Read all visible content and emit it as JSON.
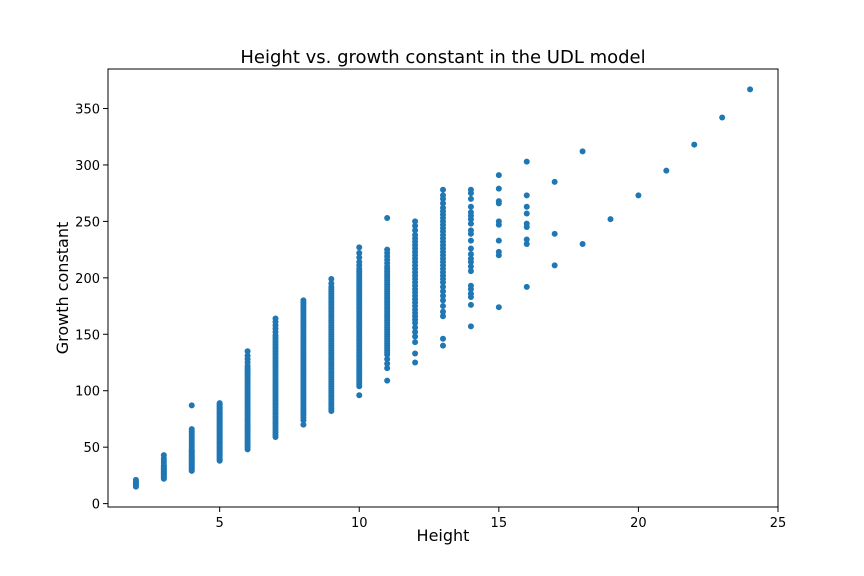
{
  "chart_data": {
    "type": "scatter",
    "title": "Height vs. growth constant in the UDL model",
    "xlabel": "Height",
    "ylabel": "Growth constant",
    "xlim": [
      1,
      25
    ],
    "ylim": [
      -3,
      385
    ],
    "xticks": [
      5,
      10,
      15,
      20,
      25
    ],
    "yticks": [
      0,
      50,
      100,
      150,
      200,
      250,
      300,
      350
    ],
    "grid": false,
    "point_color": "#1f77b4",
    "points_by_height": [
      {
        "x": 2,
        "y": [
          15,
          16,
          17,
          18,
          19,
          20,
          21
        ]
      },
      {
        "x": 3,
        "y": [
          22,
          23,
          24,
          25,
          26,
          27,
          28,
          29,
          30,
          31,
          32,
          33,
          34,
          36,
          38,
          40,
          43
        ]
      },
      {
        "x": 4,
        "y": [
          29,
          30,
          31,
          32,
          33,
          34,
          35,
          36,
          37,
          38,
          39,
          40,
          41,
          42,
          43,
          44,
          45,
          46,
          47,
          48,
          50,
          52,
          54,
          56,
          58,
          60,
          62,
          64,
          66,
          87
        ]
      },
      {
        "x": 5,
        "y": [
          38,
          39,
          40,
          41,
          42,
          43,
          44,
          45,
          46,
          47,
          48,
          49,
          50,
          51,
          52,
          53,
          54,
          55,
          56,
          57,
          58,
          59,
          60,
          61,
          62,
          63,
          64,
          65,
          66,
          67,
          68,
          69,
          70,
          71,
          72,
          73,
          74,
          75,
          76,
          77,
          78,
          79,
          80,
          81,
          82,
          83,
          84,
          85,
          86,
          87,
          88,
          89
        ]
      },
      {
        "x": 6,
        "y": [
          48,
          50,
          52,
          54,
          56,
          58,
          60,
          62,
          64,
          66,
          68,
          70,
          72,
          74,
          76,
          78,
          80,
          82,
          84,
          86,
          88,
          90,
          92,
          94,
          96,
          98,
          100,
          102,
          104,
          106,
          108,
          110,
          112,
          114,
          116,
          118,
          120,
          122,
          125,
          128,
          131,
          135
        ]
      },
      {
        "x": 7,
        "y": [
          59,
          61,
          63,
          65,
          67,
          69,
          71,
          73,
          75,
          77,
          79,
          81,
          83,
          85,
          87,
          89,
          91,
          93,
          95,
          97,
          99,
          101,
          103,
          105,
          107,
          109,
          111,
          113,
          115,
          117,
          119,
          121,
          123,
          125,
          127,
          129,
          131,
          133,
          135,
          137,
          139,
          141,
          143,
          145,
          147,
          149,
          152,
          155,
          158,
          161,
          164
        ]
      },
      {
        "x": 8,
        "y": [
          70,
          74,
          76,
          78,
          80,
          82,
          84,
          86,
          88,
          90,
          92,
          94,
          96,
          98,
          100,
          102,
          104,
          106,
          108,
          110,
          112,
          114,
          116,
          118,
          120,
          122,
          124,
          126,
          128,
          130,
          132,
          134,
          136,
          138,
          140,
          142,
          144,
          146,
          148,
          150,
          152,
          154,
          156,
          158,
          160,
          162,
          164,
          166,
          168,
          170,
          172,
          174,
          176,
          178,
          180
        ]
      },
      {
        "x": 9,
        "y": [
          82,
          84,
          86,
          88,
          90,
          92,
          94,
          96,
          98,
          100,
          102,
          104,
          106,
          108,
          110,
          112,
          114,
          116,
          118,
          120,
          122,
          124,
          126,
          128,
          130,
          132,
          134,
          136,
          138,
          140,
          142,
          144,
          146,
          148,
          150,
          152,
          154,
          156,
          158,
          160,
          162,
          164,
          166,
          168,
          170,
          172,
          174,
          176,
          178,
          180,
          182,
          184,
          186,
          188,
          190,
          192,
          195,
          199
        ]
      },
      {
        "x": 10,
        "y": [
          96,
          104,
          106,
          108,
          110,
          112,
          114,
          116,
          118,
          120,
          122,
          124,
          126,
          128,
          130,
          132,
          134,
          136,
          138,
          140,
          142,
          144,
          146,
          148,
          150,
          152,
          154,
          156,
          158,
          160,
          162,
          164,
          166,
          168,
          170,
          172,
          174,
          176,
          178,
          180,
          182,
          184,
          186,
          188,
          190,
          192,
          194,
          196,
          198,
          200,
          202,
          204,
          206,
          208,
          211,
          214,
          218,
          222,
          227
        ]
      },
      {
        "x": 11,
        "y": [
          109,
          120,
          124,
          128,
          132,
          134,
          136,
          138,
          140,
          142,
          144,
          146,
          148,
          150,
          152,
          154,
          156,
          158,
          160,
          162,
          164,
          166,
          168,
          170,
          172,
          174,
          176,
          178,
          180,
          182,
          184,
          186,
          188,
          190,
          192,
          194,
          196,
          198,
          200,
          202,
          204,
          206,
          208,
          210,
          213,
          216,
          219,
          222,
          225,
          253
        ]
      },
      {
        "x": 12,
        "y": [
          125,
          133,
          143,
          148,
          152,
          156,
          160,
          163,
          166,
          169,
          172,
          175,
          178,
          181,
          184,
          187,
          190,
          193,
          196,
          199,
          202,
          205,
          208,
          211,
          214,
          217,
          220,
          223,
          226,
          229,
          232,
          235,
          238,
          242,
          246,
          250
        ]
      },
      {
        "x": 13,
        "y": [
          140,
          146,
          166,
          170,
          175,
          180,
          184,
          188,
          192,
          196,
          199,
          202,
          205,
          208,
          211,
          214,
          217,
          220,
          223,
          226,
          229,
          232,
          235,
          238,
          241,
          244,
          247,
          250,
          253,
          256,
          259,
          262,
          266,
          270,
          273,
          278
        ]
      },
      {
        "x": 14,
        "y": [
          157,
          176,
          183,
          186,
          190,
          193,
          206,
          210,
          214,
          217,
          221,
          226,
          233,
          239,
          242,
          248,
          252,
          255,
          258,
          263,
          270,
          275,
          278
        ]
      },
      {
        "x": 15,
        "y": [
          174,
          220,
          223,
          233,
          247,
          250,
          266,
          268,
          279,
          291
        ]
      },
      {
        "x": 16,
        "y": [
          192,
          230,
          234,
          245,
          248,
          257,
          263,
          273,
          303
        ]
      },
      {
        "x": 17,
        "y": [
          211,
          239,
          285
        ]
      },
      {
        "x": 18,
        "y": [
          230,
          312
        ]
      },
      {
        "x": 19,
        "y": [
          252
        ]
      },
      {
        "x": 20,
        "y": [
          273
        ]
      },
      {
        "x": 21,
        "y": [
          295
        ]
      },
      {
        "x": 22,
        "y": [
          318
        ]
      },
      {
        "x": 23,
        "y": [
          342
        ]
      },
      {
        "x": 24,
        "y": [
          367
        ]
      }
    ]
  }
}
